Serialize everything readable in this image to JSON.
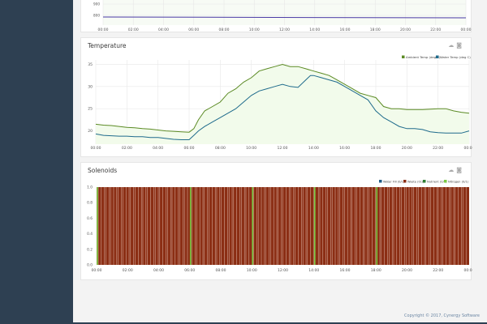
{
  "colors": {
    "sidebar": "#2e4052",
    "grid": "#e8e8e8",
    "ambient": "#5b8a24",
    "water": "#1f6b8c",
    "fill": "#f2fbeb",
    "waste": "#8b2e14",
    "green": "#7ac943"
  },
  "top_chart": {
    "yticks": [
      "900",
      "800"
    ],
    "xticks": [
      "00:00",
      "02:00",
      "04:00",
      "06:00",
      "08:00",
      "10:00",
      "12:00",
      "14:00",
      "16:00",
      "18:00",
      "20:00",
      "22:00",
      "00:00"
    ]
  },
  "temperature": {
    "title": "Temperature",
    "icons": [
      "cloud-icon",
      "camera-icon"
    ]
  },
  "solenoids": {
    "title": "Solenoids",
    "icons": [
      "cloud-icon",
      "camera-icon"
    ]
  },
  "footer": {
    "text": "Copyright © 2017, Cynergy Software"
  },
  "chart_data": [
    {
      "type": "line",
      "title": "Temperature",
      "xlabel": "",
      "ylabel": "",
      "xticks": [
        "00:00",
        "02:00",
        "04:00",
        "06:00",
        "08:00",
        "10:00",
        "12:00",
        "14:00",
        "16:00",
        "18:00",
        "20:00",
        "22:00",
        "00:00"
      ],
      "yticks": [
        20,
        25,
        30,
        35
      ],
      "ylim": [
        17,
        36
      ],
      "legend": "top-right",
      "series": [
        {
          "name": "Ambient Temp (deg C)",
          "x": [
            0,
            0.5,
            1,
            1.5,
            2,
            2.5,
            3,
            3.5,
            4,
            4.5,
            5,
            5.5,
            6,
            6.3,
            6.6,
            7,
            7.5,
            8,
            8.5,
            9,
            9.5,
            10,
            10.5,
            11,
            11.5,
            12,
            12.5,
            13,
            13.5,
            14,
            14.5,
            15,
            15.5,
            16,
            16.5,
            17,
            17.5,
            18,
            18.5,
            19,
            19.5,
            20,
            20.5,
            21,
            21.5,
            22,
            22.5,
            23,
            23.5,
            24
          ],
          "y": [
            21.5,
            21.3,
            21.2,
            21.0,
            20.8,
            20.7,
            20.5,
            20.4,
            20.2,
            20.0,
            19.9,
            19.8,
            19.7,
            20.5,
            22.5,
            24.5,
            25.5,
            26.5,
            28.5,
            29.5,
            31,
            32,
            33.5,
            34,
            34.5,
            35,
            34.5,
            34.5,
            34,
            33.5,
            33,
            32.5,
            31.5,
            30.5,
            29.5,
            28.5,
            28,
            27.5,
            25.5,
            25,
            25,
            24.8,
            24.8,
            24.8,
            24.9,
            25,
            25,
            24.5,
            24.2,
            24
          ]
        },
        {
          "name": "Water Temp (deg C)",
          "x": [
            0,
            0.5,
            1,
            1.5,
            2,
            2.5,
            3,
            3.5,
            4,
            4.5,
            5,
            5.5,
            6,
            6.3,
            6.6,
            7,
            7.5,
            8,
            8.5,
            9,
            9.5,
            10,
            10.5,
            11,
            11.5,
            12,
            12.5,
            13,
            13.5,
            13.8,
            14,
            14.5,
            15,
            15.5,
            16,
            16.5,
            17,
            17.5,
            18,
            18.5,
            19,
            19.5,
            20,
            20.5,
            21,
            21.5,
            22,
            22.5,
            23,
            23.5,
            24
          ],
          "y": [
            19.3,
            19.0,
            18.9,
            18.8,
            18.8,
            18.7,
            18.7,
            18.5,
            18.5,
            18.3,
            18.1,
            18.0,
            18.0,
            19.0,
            20.0,
            21.0,
            22.0,
            23.0,
            24.0,
            25.0,
            26.5,
            28.0,
            29.0,
            29.5,
            30.0,
            30.5,
            30.0,
            29.8,
            31.5,
            32.5,
            32.5,
            32.0,
            31.5,
            31.0,
            30.0,
            29.0,
            28.0,
            27.0,
            24.5,
            23.0,
            22.0,
            21.0,
            20.5,
            20.5,
            20.3,
            19.8,
            19.6,
            19.5,
            19.5,
            19.5,
            20.0
          ]
        }
      ]
    },
    {
      "type": "bar",
      "title": "Solenoids",
      "xticks": [
        "00:00",
        "02:00",
        "04:00",
        "06:00",
        "08:00",
        "10:00",
        "12:00",
        "14:00",
        "16:00",
        "18:00",
        "20:00",
        "22:00",
        "00:00"
      ],
      "yticks": [
        0.0,
        0.2,
        0.4,
        0.6,
        0.8,
        1.0
      ],
      "ylim": [
        0,
        1
      ],
      "legend": "top-right",
      "series": [
        {
          "name": "Water Fill (0/1)",
          "values": []
        },
        {
          "name": "Waste (0/1)",
          "description": "frequent on/off pulses across the day",
          "values": [
            1
          ]
        },
        {
          "name": "Nutrient (0/1)",
          "values": []
        },
        {
          "name": "Nitrogen (0/1)",
          "description": "brief pulses",
          "x": [
            0,
            6,
            10,
            14,
            18
          ],
          "values": [
            1,
            1,
            1,
            1,
            1
          ]
        }
      ]
    }
  ]
}
